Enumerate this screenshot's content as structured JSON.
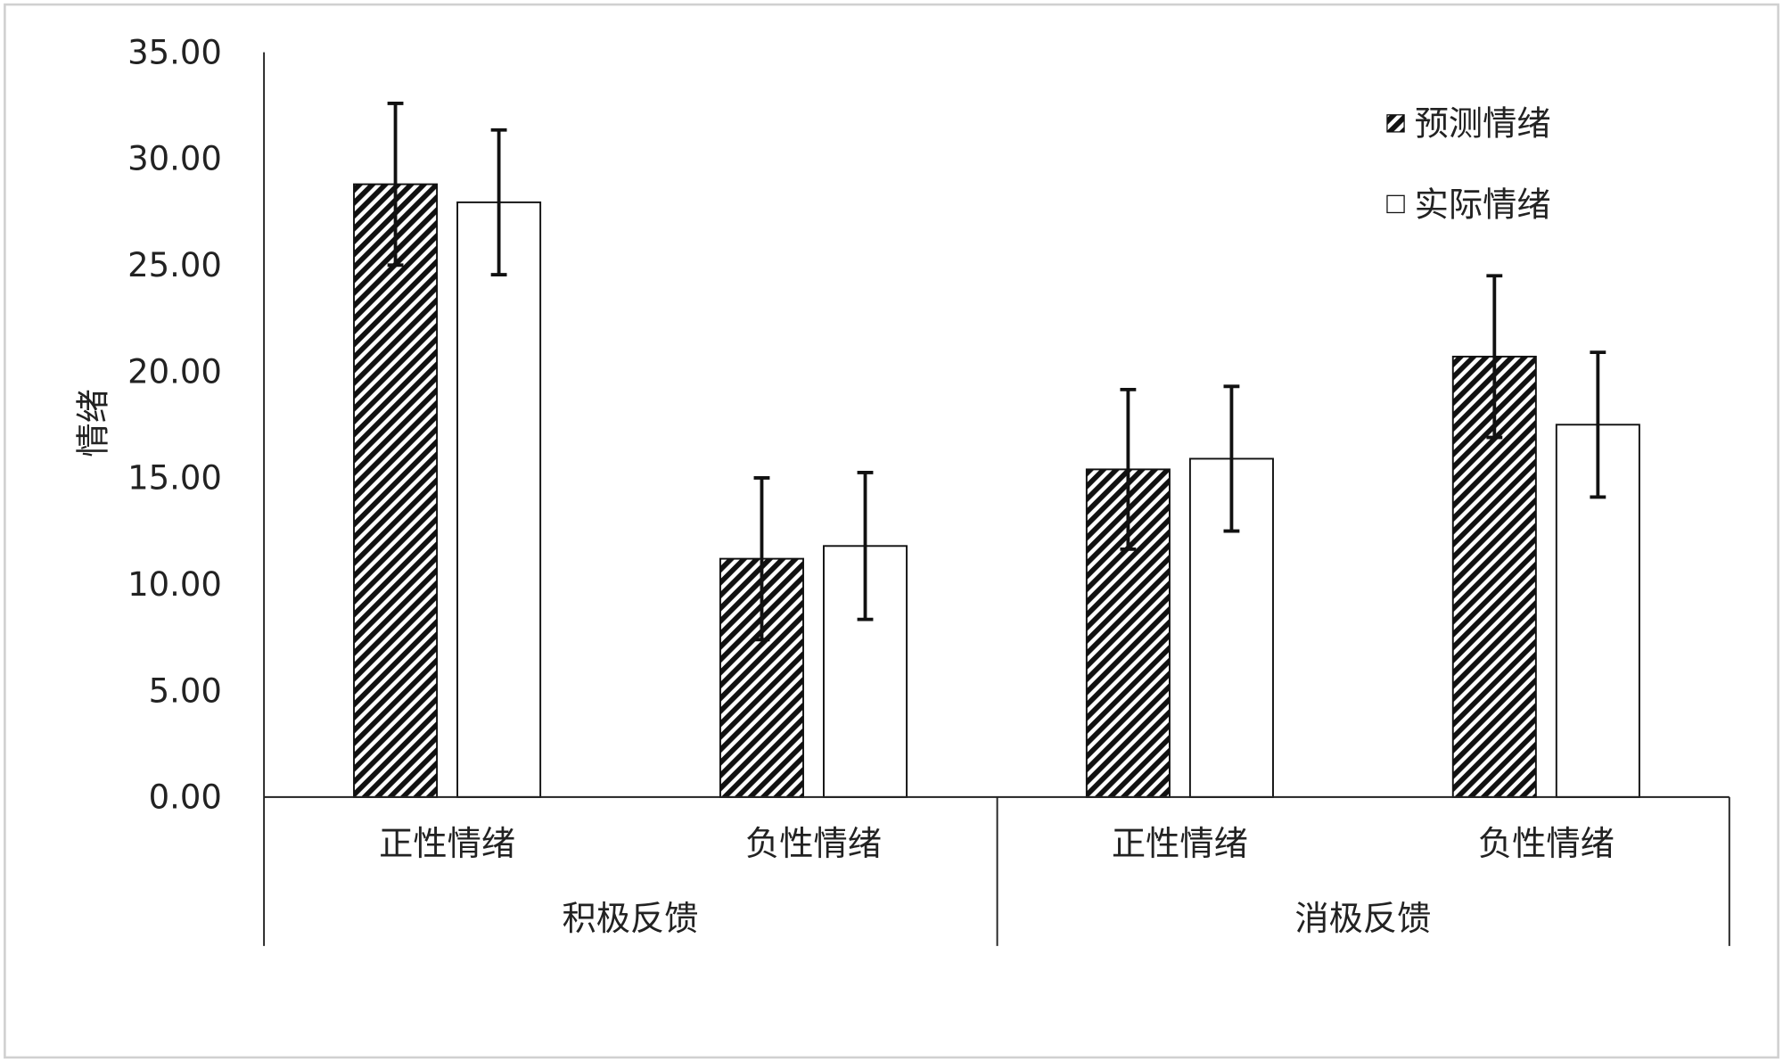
{
  "chart_data": {
    "type": "bar",
    "ylabel": "情绪",
    "xlabel": "",
    "ylim": [
      0,
      35
    ],
    "yticks": [
      "0.00",
      "5.00",
      "10.00",
      "15.00",
      "20.00",
      "25.00",
      "30.00",
      "35.00"
    ],
    "categories": [
      "正性情绪",
      "负性情绪",
      "正性情绪",
      "负性情绪"
    ],
    "groups": [
      "积极反馈",
      "消极反馈"
    ],
    "legend_position": "top-right",
    "grid": false,
    "series": [
      {
        "name": "预测情绪",
        "pattern": "diagonal-hatch",
        "values": [
          28.8,
          11.2,
          15.4,
          20.7
        ],
        "errors": [
          3.8,
          3.8,
          3.75,
          3.8
        ]
      },
      {
        "name": "实际情绪",
        "pattern": "white",
        "values": [
          27.95,
          11.8,
          15.9,
          17.5
        ],
        "errors": [
          3.4,
          3.45,
          3.4,
          3.4
        ]
      }
    ]
  }
}
